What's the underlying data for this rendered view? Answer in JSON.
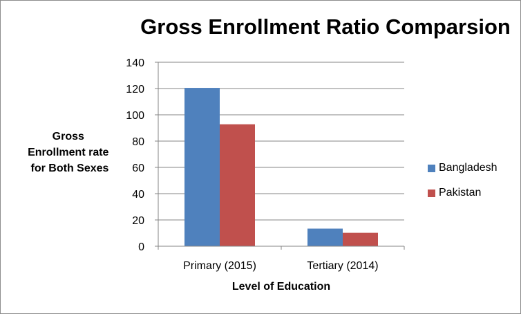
{
  "chart_data": {
    "type": "bar",
    "title": "Gross Enrollment Ratio Comparsion",
    "xlabel": "Level of Education",
    "ylabel": [
      "Gross",
      "Enrollment rate",
      "for Both Sexes"
    ],
    "categories": [
      "Primary (2015)",
      "Tertiary (2014)"
    ],
    "series": [
      {
        "name": "Bangladesh",
        "color": "#4f81bd",
        "values": [
          120.5,
          13.4
        ]
      },
      {
        "name": "Pakistan",
        "color": "#c0504d",
        "values": [
          92.8,
          10.2
        ]
      }
    ],
    "ylim": [
      0,
      140
    ],
    "yticks": [
      0,
      20,
      40,
      60,
      80,
      100,
      120,
      140
    ],
    "grid": true,
    "legend": "right"
  }
}
